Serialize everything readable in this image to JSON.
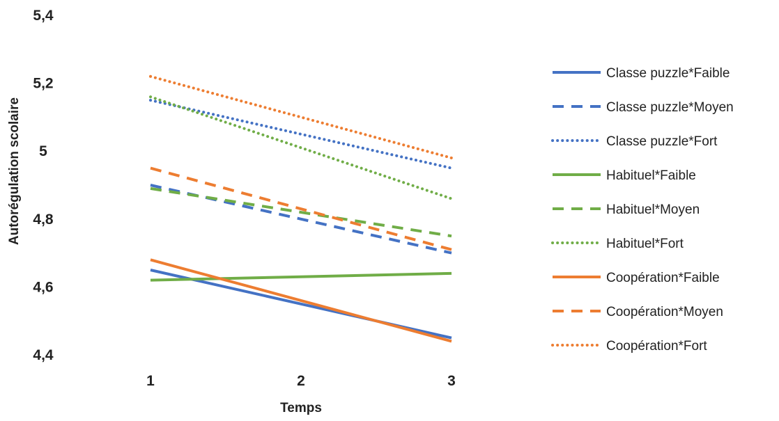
{
  "chart_data": {
    "type": "line",
    "title": "",
    "xlabel": "Temps",
    "ylabel": "Autorégulation scolaire",
    "x": [
      1,
      2,
      3
    ],
    "x_tick_labels": [
      "1",
      "2",
      "3"
    ],
    "ylim": [
      4.4,
      5.4
    ],
    "y_tick_labels": [
      "4,4",
      "4,6",
      "4,8",
      "5",
      "5,2",
      "5,4"
    ],
    "grid": false,
    "legend_position": "right",
    "series": [
      {
        "name": "Classe puzzle*Faible",
        "color": "#4472C4",
        "dash": "solid",
        "values": [
          4.65,
          4.55,
          4.45
        ]
      },
      {
        "name": "Classe puzzle*Moyen",
        "color": "#4472C4",
        "dash": "dashed",
        "values": [
          4.9,
          4.8,
          4.7
        ]
      },
      {
        "name": "Classe puzzle*Fort",
        "color": "#4472C4",
        "dash": "dotted",
        "values": [
          5.15,
          5.05,
          4.95
        ]
      },
      {
        "name": "Habituel*Faible",
        "color": "#70AD47",
        "dash": "solid",
        "values": [
          4.62,
          4.63,
          4.64
        ]
      },
      {
        "name": "Habituel*Moyen",
        "color": "#70AD47",
        "dash": "dashed",
        "values": [
          4.89,
          4.82,
          4.75
        ]
      },
      {
        "name": "Habituel*Fort",
        "color": "#70AD47",
        "dash": "dotted",
        "values": [
          5.16,
          5.01,
          4.86
        ]
      },
      {
        "name": "Coopération*Faible",
        "color": "#ED7D31",
        "dash": "solid",
        "values": [
          4.68,
          4.56,
          4.44
        ]
      },
      {
        "name": "Coopération*Moyen",
        "color": "#ED7D31",
        "dash": "dashed",
        "values": [
          4.95,
          4.83,
          4.71
        ]
      },
      {
        "name": "Coopération*Fort",
        "color": "#ED7D31",
        "dash": "dotted",
        "values": [
          5.22,
          5.1,
          4.98
        ]
      }
    ]
  }
}
